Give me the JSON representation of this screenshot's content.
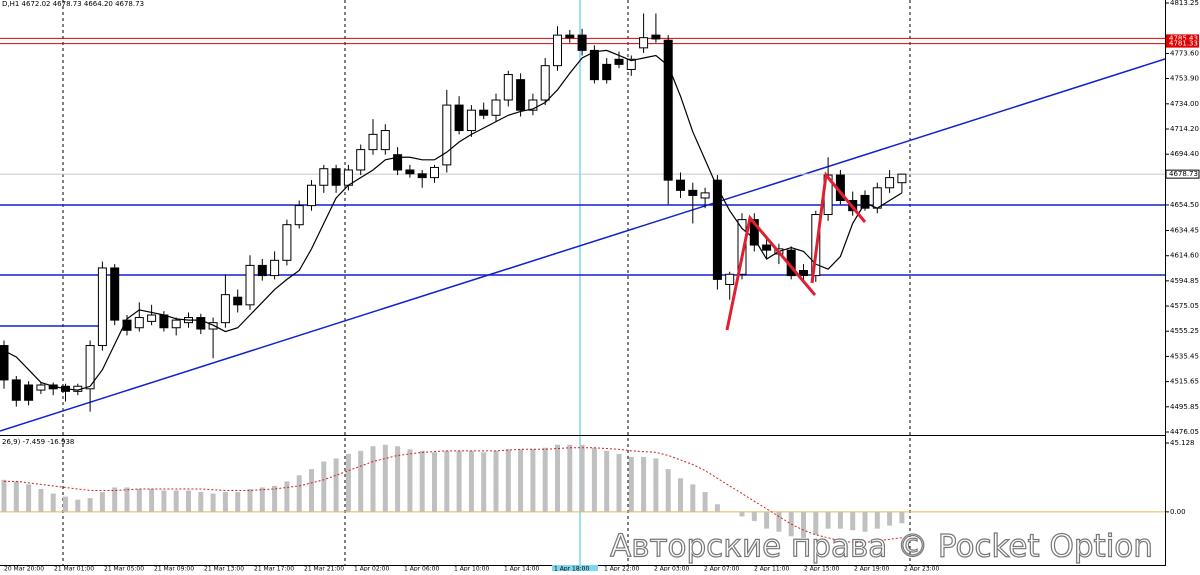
{
  "chart_data": {
    "type": "candlestick",
    "title": "D,H1  4672.02 4678.73 4664.20 4678.73",
    "ylim": [
      4476.05,
      4813.25
    ],
    "yticks": [
      4813.25,
      {
        "value": 4773.6,
        "label": "4773.60"
      },
      {
        "value": 4753.9,
        "label": "4753.90"
      },
      {
        "value": 4734,
        "label": "4734.00"
      },
      {
        "value": 4714.2,
        "label": "4714.20"
      },
      {
        "value": 4694.4,
        "label": "4694.40"
      },
      {
        "value": 4654.5,
        "label": "4654.50"
      },
      4634.45,
      {
        "value": 4614.6,
        "label": "4614.60"
      },
      4594.85,
      4575.05,
      4555.25,
      4535.45,
      4515.65,
      4495.85,
      4476.05
    ],
    "levels": [
      {
        "value": 4785.43,
        "color": "#e00000"
      },
      {
        "value": 4781.33,
        "color": "#e00000"
      },
      {
        "value": 4678.73,
        "color": "#000000"
      }
    ],
    "categories": [
      "20 Mar 20:00",
      "21 Mar 01:00",
      "21 Mar 05:00",
      "21 Mar 09:00",
      "21 Mar 13:00",
      "21 Mar 17:00",
      "21 Mar 21:00",
      "1 Apr 02:00",
      "1 Apr 06:00",
      "1 Apr 10:00",
      "1 Apr 14:00",
      "1 Apr 18:00",
      "1 Apr 22:00",
      "2 Apr 03:00",
      "2 Apr 07:00",
      "2 Apr 11:00",
      "2 Apr 15:00",
      "2 Apr 19:00",
      "2 Apr 23:00"
    ],
    "open": [
      4544,
      4517,
      4513,
      4509,
      4513,
      4512,
      4508,
      4510,
      4544,
      4605,
      4564,
      4558,
      4563,
      4568,
      4558,
      4562,
      4566,
      4557,
      4562,
      4582,
      4576,
      4607,
      4599,
      4611,
      4639,
      4654,
      4670,
      4683,
      4670,
      4682,
      4698,
      4698,
      4694,
      4682,
      4679,
      4676,
      4686,
      4733,
      4713,
      4729,
      4725,
      4737,
      4753,
      4729,
      4737,
      4764,
      4788,
      4788,
      4776,
      4765,
      4769,
      4761,
      4778,
      4788,
      4784,
      4674,
      4666,
      4660,
      4674,
      4592,
      4600,
      4643,
      4623,
      4616,
      4619,
      4603,
      4599,
      4647,
      4678,
      4658,
      4662,
      4652,
      4668,
      4672
    ],
    "high": [
      4548,
      4520,
      4516,
      4515,
      4515,
      4514,
      4514,
      4548,
      4610,
      4608,
      4568,
      4578,
      4576,
      4571,
      4566,
      4570,
      4569,
      4566,
      4600,
      4588,
      4615,
      4612,
      4618,
      4643,
      4658,
      4674,
      4686,
      4686,
      4686,
      4702,
      4722,
      4718,
      4700,
      4686,
      4682,
      4686,
      4745,
      4740,
      4733,
      4735,
      4742,
      4760,
      4758,
      4742,
      4770,
      4795,
      4792,
      4793,
      4780,
      4770,
      4775,
      4772,
      4805,
      4805,
      4788,
      4680,
      4672,
      4668,
      4678,
      4602,
      4648,
      4648,
      4630,
      4624,
      4622,
      4608,
      4650,
      4692,
      4682,
      4665,
      4666,
      4672,
      4682,
      4679
    ],
    "low": [
      4510,
      4496,
      4497,
      4506,
      4505,
      4500,
      4505,
      4492,
      4540,
      4560,
      4552,
      4555,
      4560,
      4555,
      4552,
      4558,
      4553,
      4534,
      4558,
      4570,
      4572,
      4595,
      4596,
      4607,
      4636,
      4650,
      4664,
      4664,
      4666,
      4678,
      4694,
      4694,
      4678,
      4676,
      4668,
      4672,
      4680,
      4710,
      4708,
      4722,
      4720,
      4732,
      4724,
      4725,
      4733,
      4760,
      4782,
      4772,
      4750,
      4750,
      4762,
      4756,
      4774,
      4782,
      4655,
      4660,
      4640,
      4652,
      4588,
      4580,
      4596,
      4618,
      4612,
      4608,
      4596,
      4594,
      4594,
      4642,
      4655,
      4646,
      4650,
      4648,
      4664,
      4664
    ],
    "close": [
      4517,
      4501,
      4501,
      4513,
      4510,
      4508,
      4512,
      4544,
      4605,
      4564,
      4556,
      4566,
      4568,
      4558,
      4564,
      4566,
      4557,
      4562,
      4584,
      4576,
      4607,
      4599,
      4611,
      4639,
      4654,
      4670,
      4683,
      4670,
      4682,
      4698,
      4710,
      4713,
      4682,
      4679,
      4676,
      4684,
      4733,
      4713,
      4729,
      4725,
      4737,
      4757,
      4729,
      4737,
      4764,
      4788,
      4786,
      4776,
      4753,
      4753,
      4765,
      4769,
      4786,
      4785,
      4674,
      4666,
      4662,
      4664,
      4596,
      4600,
      4643,
      4623,
      4619,
      4620,
      4599,
      4599,
      4647,
      4678,
      4658,
      4650,
      4652,
      4668,
      4676,
      4678.73
    ],
    "ma": [
      4540,
      4535,
      4525,
      4515,
      4512,
      4510,
      4509,
      4512,
      4525,
      4545,
      4565,
      4572,
      4570,
      4568,
      4565,
      4564,
      4564,
      4560,
      4555,
      4558,
      4568,
      4578,
      4588,
      4596,
      4603,
      4620,
      4640,
      4660,
      4670,
      4676,
      4682,
      4690,
      4692,
      4692,
      4690,
      4690,
      4696,
      4704,
      4710,
      4715,
      4720,
      4725,
      4728,
      4730,
      4735,
      4745,
      4758,
      4770,
      4775,
      4776,
      4772,
      4768,
      4770,
      4772,
      4764,
      4740,
      4712,
      4690,
      4668,
      4650,
      4636,
      4628,
      4612,
      4618,
      4621,
      4618,
      4608,
      4604,
      4614,
      4640,
      4656,
      4652,
      4658,
      4664
    ],
    "macd": {
      "label": "26,9) -7.459 -16.938",
      "ylim": [
        -33.5,
        45.128
      ],
      "yticks": [
        45.128,
        {
          "value": 0,
          "label": "0.00"
        }
      ],
      "hist": [
        21,
        20,
        18,
        15,
        12,
        10,
        8,
        9,
        13,
        16,
        16,
        15,
        15,
        14,
        14,
        14,
        13,
        12,
        13,
        13,
        15,
        16,
        17,
        20,
        24,
        28,
        33,
        35,
        38,
        40,
        43,
        44,
        43,
        41,
        40,
        39,
        40,
        40,
        40,
        39,
        40,
        41,
        41,
        41,
        42,
        44,
        44,
        44,
        42,
        40,
        38,
        36,
        36,
        35,
        28,
        22,
        18,
        13,
        5,
        0,
        -3,
        -6,
        -11,
        -13,
        -16,
        -17,
        -15,
        -11,
        -11,
        -12,
        -13,
        -11,
        -9,
        -7.459
      ],
      "signal": [
        20,
        20,
        19,
        18,
        17,
        16,
        15,
        14,
        14,
        14,
        14.5,
        15,
        15,
        15,
        15,
        15,
        15,
        14.5,
        14,
        14,
        14,
        14.5,
        15,
        16,
        17,
        19,
        21,
        24,
        27,
        30,
        33,
        35,
        37,
        38,
        39,
        39.5,
        40,
        40,
        40,
        40,
        40,
        40.5,
        41,
        41,
        41,
        41.5,
        42,
        42,
        42,
        41.5,
        41,
        40,
        39.5,
        39,
        37,
        34,
        31,
        27,
        22,
        17,
        12,
        7,
        2,
        -3,
        -8,
        -12,
        -15,
        -17,
        -19,
        -20,
        -20,
        -19,
        -18,
        -16.938
      ]
    },
    "watermark": "Авторские права © Pocket Option"
  }
}
